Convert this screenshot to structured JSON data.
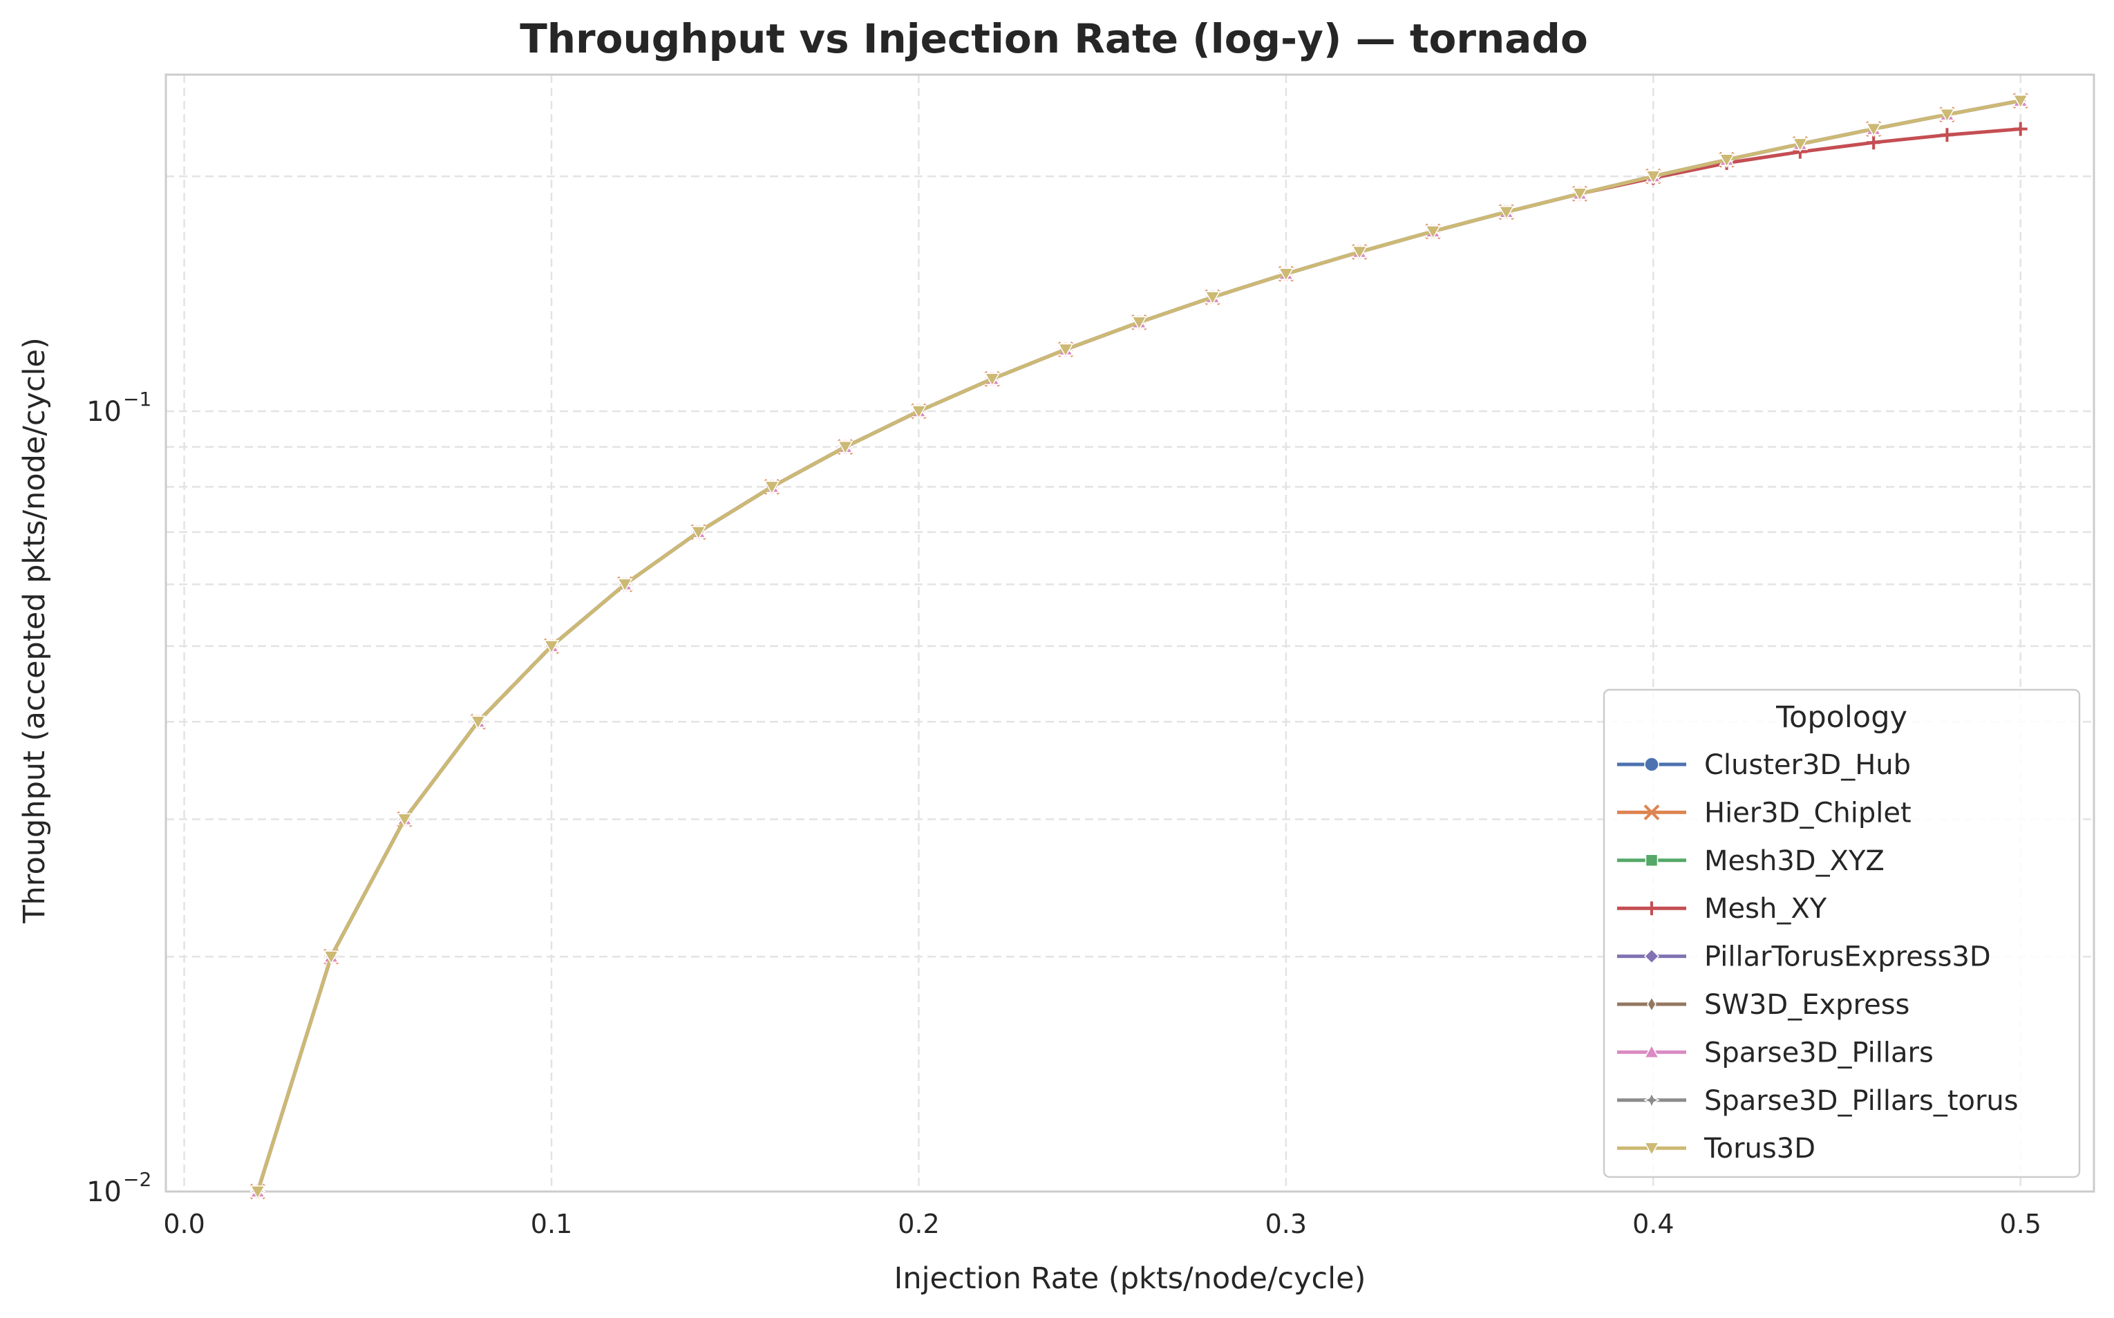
{
  "chart_data": {
    "type": "line",
    "title": "Throughput vs Injection Rate (log-y) — tornado",
    "xlabel": "Injection Rate (pkts/node/cycle)",
    "ylabel": "Throughput (accepted pkts/node/cycle)",
    "yscale": "log",
    "xlim": [
      -0.005,
      0.52
    ],
    "ylim": [
      0.01,
      0.27
    ],
    "grid": true,
    "xticks": [
      {
        "value": 0.0,
        "label": "0.0"
      },
      {
        "value": 0.1,
        "label": "0.1"
      },
      {
        "value": 0.2,
        "label": "0.2"
      },
      {
        "value": 0.3,
        "label": "0.3"
      },
      {
        "value": 0.4,
        "label": "0.4"
      },
      {
        "value": 0.5,
        "label": "0.5"
      }
    ],
    "yticks": [
      {
        "value": 0.01,
        "base": "10",
        "exp": "−2"
      },
      {
        "value": 0.1,
        "base": "10",
        "exp": "−1"
      }
    ],
    "legend": {
      "title": "Topology",
      "position": "lower-right"
    },
    "x": [
      0.02,
      0.04,
      0.06,
      0.08,
      0.1,
      0.12,
      0.14,
      0.16,
      0.18,
      0.2,
      0.22,
      0.24,
      0.26,
      0.28,
      0.3,
      0.32,
      0.34,
      0.36,
      0.38,
      0.4,
      0.42,
      0.44,
      0.46,
      0.48,
      0.5
    ],
    "series": [
      {
        "name": "Cluster3D_Hub",
        "color": "#4c72b0",
        "marker": "circle",
        "values": [
          0.01,
          0.02,
          0.03,
          0.04,
          0.05,
          0.06,
          0.07,
          0.08,
          0.09,
          0.1,
          0.11,
          0.12,
          0.13,
          0.14,
          0.15,
          0.16,
          0.17,
          0.18,
          0.19,
          0.2,
          0.21,
          0.22,
          0.23,
          0.24,
          0.25
        ]
      },
      {
        "name": "Hier3D_Chiplet",
        "color": "#dd8452",
        "marker": "x",
        "values": [
          0.01,
          0.02,
          0.03,
          0.04,
          0.05,
          0.06,
          0.07,
          0.08,
          0.09,
          0.1,
          0.11,
          0.12,
          0.13,
          0.14,
          0.15,
          0.16,
          0.17,
          0.18,
          0.19,
          0.2,
          0.21,
          0.22,
          0.23,
          0.24,
          0.25
        ]
      },
      {
        "name": "Mesh3D_XYZ",
        "color": "#55a868",
        "marker": "square",
        "values": [
          0.01,
          0.02,
          0.03,
          0.04,
          0.05,
          0.06,
          0.07,
          0.08,
          0.09,
          0.1,
          0.11,
          0.12,
          0.13,
          0.14,
          0.15,
          0.16,
          0.17,
          0.18,
          0.19,
          0.2,
          0.21,
          0.22,
          0.23,
          0.24,
          0.25
        ]
      },
      {
        "name": "Mesh_XY",
        "color": "#c44e52",
        "marker": "plus",
        "values": [
          0.01,
          0.02,
          0.03,
          0.04,
          0.05,
          0.06,
          0.07,
          0.08,
          0.09,
          0.1,
          0.11,
          0.12,
          0.13,
          0.14,
          0.15,
          0.16,
          0.17,
          0.18,
          0.19,
          0.199,
          0.208,
          0.215,
          0.221,
          0.226,
          0.23
        ]
      },
      {
        "name": "PillarTorusExpress3D",
        "color": "#8172b3",
        "marker": "diamond",
        "values": [
          0.01,
          0.02,
          0.03,
          0.04,
          0.05,
          0.06,
          0.07,
          0.08,
          0.09,
          0.1,
          0.11,
          0.12,
          0.13,
          0.14,
          0.15,
          0.16,
          0.17,
          0.18,
          0.19,
          0.2,
          0.21,
          0.22,
          0.23,
          0.24,
          0.25
        ]
      },
      {
        "name": "SW3D_Express",
        "color": "#937860",
        "marker": "thin-diamond",
        "values": [
          0.01,
          0.02,
          0.03,
          0.04,
          0.05,
          0.06,
          0.07,
          0.08,
          0.09,
          0.1,
          0.11,
          0.12,
          0.13,
          0.14,
          0.15,
          0.16,
          0.17,
          0.18,
          0.19,
          0.2,
          0.21,
          0.22,
          0.23,
          0.24,
          0.25
        ]
      },
      {
        "name": "Sparse3D_Pillars",
        "color": "#da8bc3",
        "marker": "triangle-up",
        "values": [
          0.01,
          0.02,
          0.03,
          0.04,
          0.05,
          0.06,
          0.07,
          0.08,
          0.09,
          0.1,
          0.11,
          0.12,
          0.13,
          0.14,
          0.15,
          0.16,
          0.17,
          0.18,
          0.19,
          0.2,
          0.21,
          0.22,
          0.23,
          0.24,
          0.25
        ]
      },
      {
        "name": "Sparse3D_Pillars_torus",
        "color": "#8c8c8c",
        "marker": "star",
        "values": [
          0.01,
          0.02,
          0.03,
          0.04,
          0.05,
          0.06,
          0.07,
          0.08,
          0.09,
          0.1,
          0.11,
          0.12,
          0.13,
          0.14,
          0.15,
          0.16,
          0.17,
          0.18,
          0.19,
          0.2,
          0.21,
          0.22,
          0.23,
          0.24,
          0.25
        ]
      },
      {
        "name": "Torus3D",
        "color": "#ccb974",
        "marker": "triangle-down",
        "values": [
          0.01,
          0.02,
          0.03,
          0.04,
          0.05,
          0.06,
          0.07,
          0.08,
          0.09,
          0.1,
          0.11,
          0.12,
          0.13,
          0.14,
          0.15,
          0.16,
          0.17,
          0.18,
          0.19,
          0.2,
          0.21,
          0.22,
          0.23,
          0.24,
          0.25
        ]
      }
    ]
  }
}
